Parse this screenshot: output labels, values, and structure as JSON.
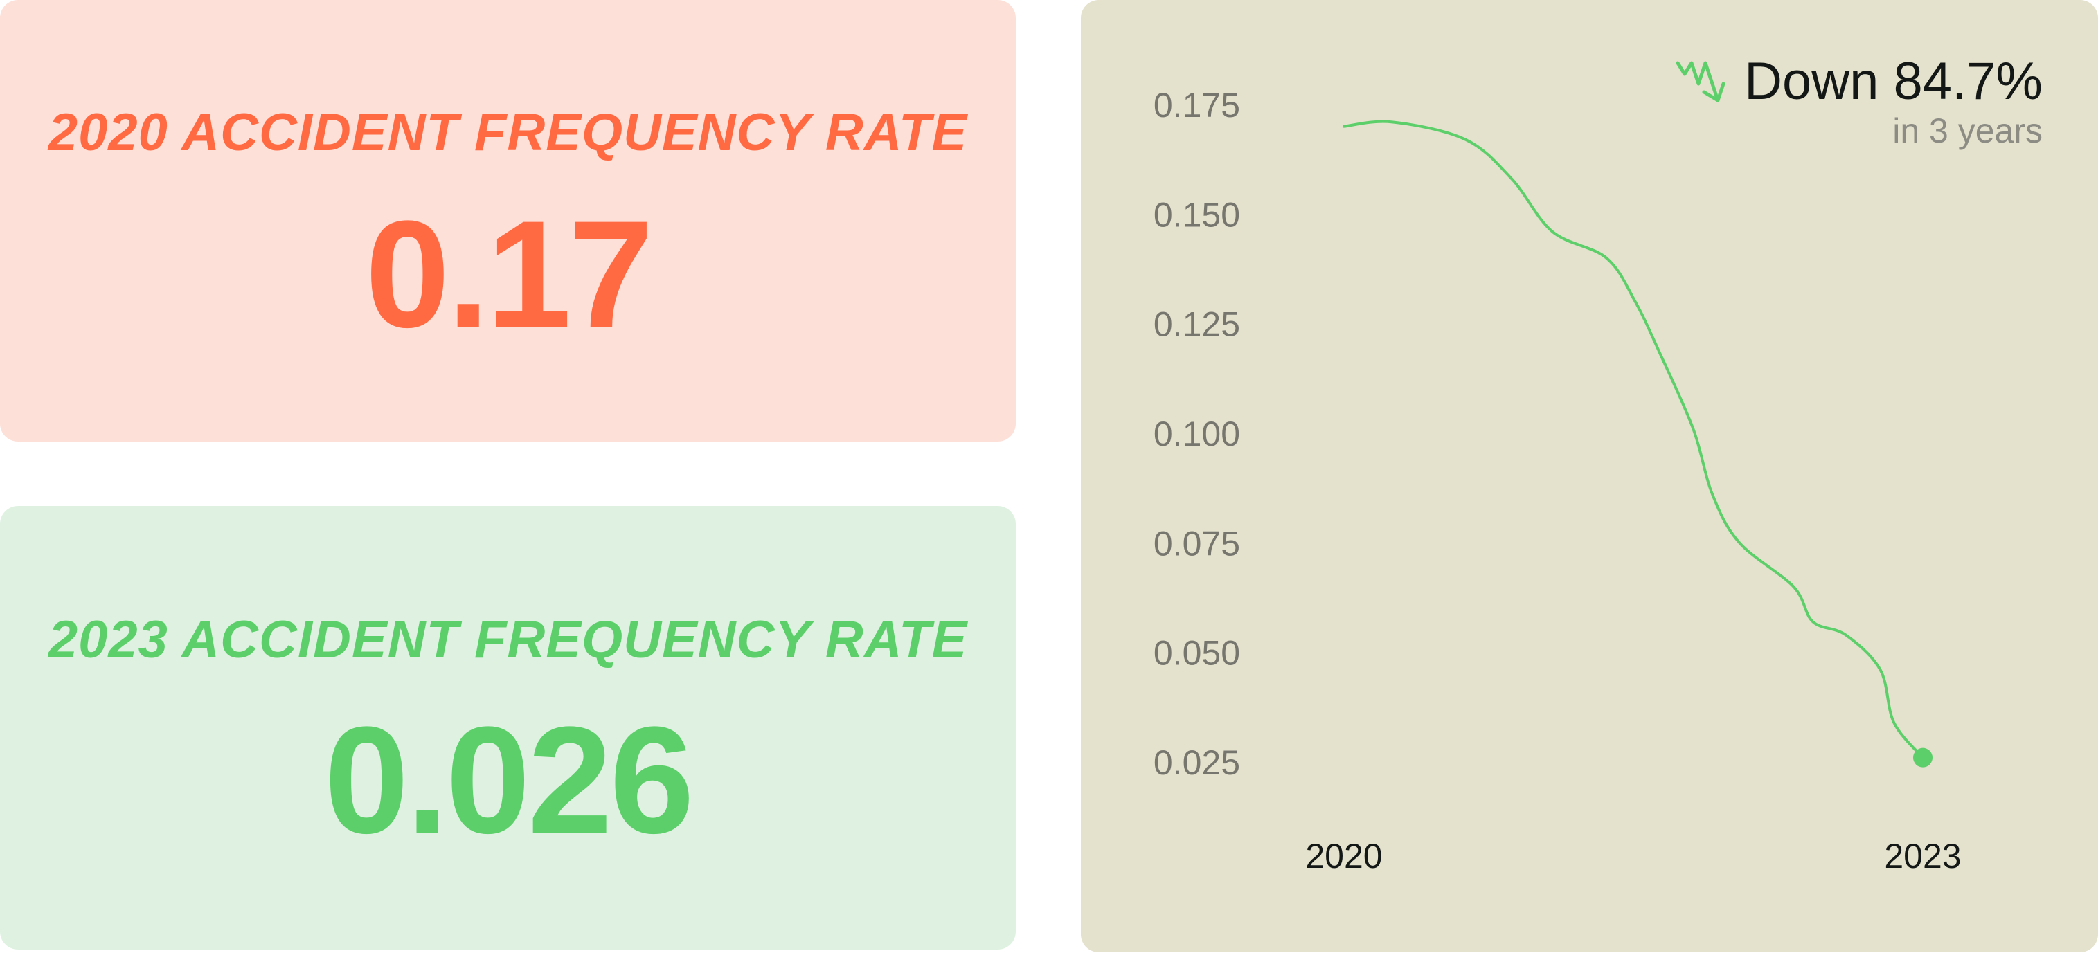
{
  "cards": [
    {
      "title": "2020 ACCIDENT FREQUENCY RATE",
      "value": "0.17",
      "color": "#ff6a43",
      "background": "#fde0d8"
    },
    {
      "title": "2023 ACCIDENT FREQUENCY RATE",
      "value": "0.026",
      "color": "#5ccf6a",
      "background": "#dff2e1"
    }
  ],
  "summary": {
    "icon": "trend-down-icon",
    "headline": "Down 84.7%",
    "subline": "in 3 years"
  },
  "chart_data": {
    "type": "line",
    "title": "",
    "xlabel": "",
    "ylabel": "",
    "ylim": [
      0.025,
      0.175
    ],
    "xlim": [
      2020,
      2023
    ],
    "grid": false,
    "x_tick_labels": [
      "2020",
      "2023"
    ],
    "y_tick_labels": [
      "0.175",
      "0.150",
      "0.125",
      "0.100",
      "0.075",
      "0.050",
      "0.025"
    ],
    "y_ticks": [
      0.175,
      0.15,
      0.125,
      0.1,
      0.075,
      0.05,
      0.025
    ],
    "line_color": "#5ccf6a",
    "background": "#e4e1cc",
    "series": [
      {
        "x": [
          2020.0,
          2020.25,
          2020.63,
          2020.87,
          2021.08,
          2021.36,
          2021.51,
          2021.64,
          2021.81,
          2021.91,
          2022.05,
          2022.33,
          2022.43,
          2022.6,
          2022.78,
          2022.85,
          2023.0
        ],
        "y": [
          0.17,
          0.171,
          0.167,
          0.158,
          0.146,
          0.14,
          0.13,
          0.118,
          0.101,
          0.086,
          0.075,
          0.065,
          0.057,
          0.054,
          0.046,
          0.034,
          0.026
        ]
      }
    ],
    "end_marker": true
  }
}
